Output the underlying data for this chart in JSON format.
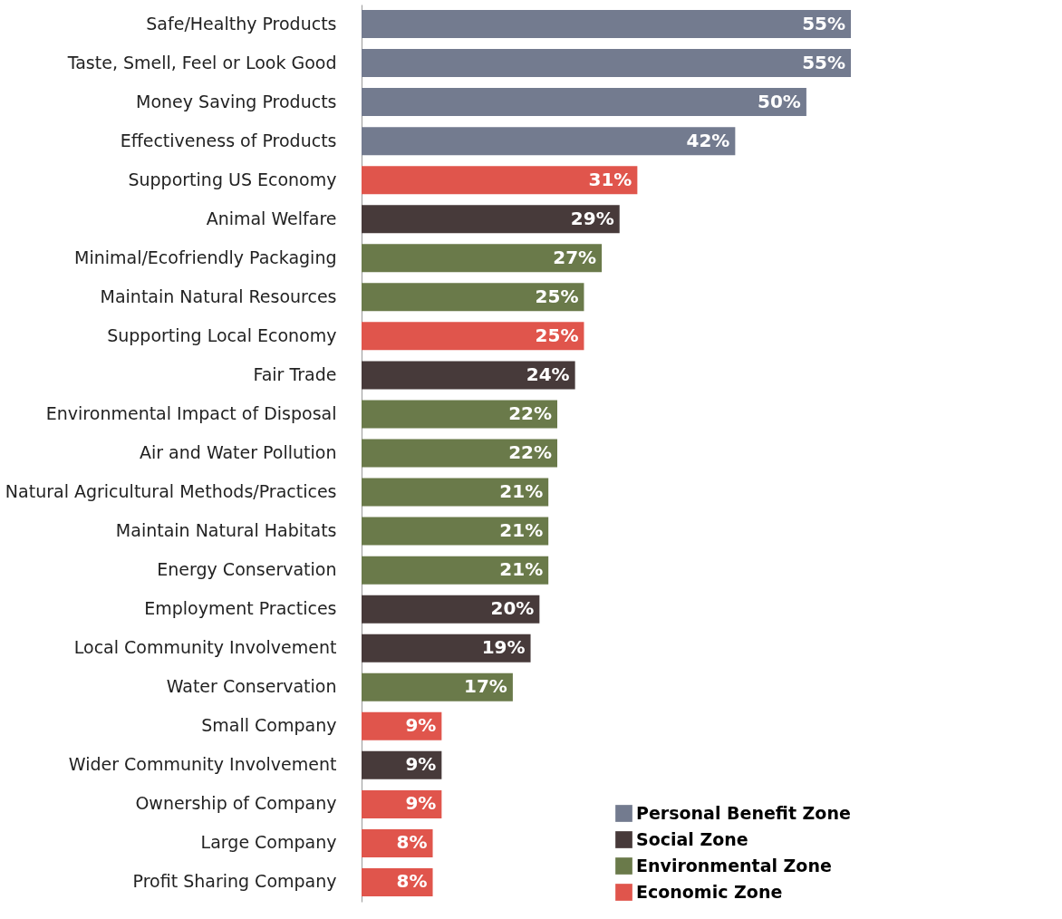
{
  "chart_data": {
    "type": "bar",
    "orientation": "horizontal",
    "categories": [
      "Safe/Healthy Products",
      "Taste, Smell, Feel or Look Good",
      "Money Saving Products",
      "Effectiveness of Products",
      "Supporting US Economy",
      "Animal Welfare",
      "Minimal/Ecofriendly Packaging",
      "Maintain Natural Resources",
      "Supporting Local Economy",
      "Fair Trade",
      "Environmental Impact of Disposal",
      "Air and Water Pollution",
      "Natural Agricultural Methods/Practices",
      "Maintain Natural Habitats",
      "Energy Conservation",
      "Employment Practices",
      "Local Community Involvement",
      "Water Conservation",
      "Small Company",
      "Wider Community Involvement",
      "Ownership of Company",
      "Large Company",
      "Profit Sharing Company"
    ],
    "series": [
      {
        "name": "Personal Benefit Zone",
        "color": "#737b8f",
        "values": [
          55,
          55,
          50,
          42,
          null,
          null,
          null,
          null,
          null,
          null,
          null,
          null,
          null,
          null,
          null,
          null,
          null,
          null,
          null,
          null,
          null,
          null,
          null
        ],
        "value_labels": [
          "55%",
          "55%",
          "50%",
          "42%",
          null,
          null,
          null,
          null,
          null,
          null,
          null,
          null,
          null,
          null,
          null,
          null,
          null,
          null,
          null,
          null,
          null,
          null,
          null
        ]
      },
      {
        "name": "Social Zone",
        "color": "#473a3a",
        "values": [
          null,
          null,
          null,
          null,
          null,
          29,
          null,
          null,
          null,
          24,
          null,
          null,
          null,
          null,
          null,
          20,
          19,
          null,
          null,
          9,
          null,
          null,
          null
        ],
        "value_labels": [
          null,
          null,
          null,
          null,
          null,
          "29%",
          null,
          null,
          null,
          "24%",
          null,
          null,
          null,
          null,
          null,
          "20%",
          "19%",
          null,
          null,
          "9%",
          null,
          null,
          null
        ]
      },
      {
        "name": "Environmental Zone",
        "color": "#6a7a4a",
        "values": [
          null,
          null,
          null,
          null,
          null,
          null,
          27,
          25,
          null,
          null,
          22,
          22,
          21,
          21,
          21,
          null,
          null,
          17,
          null,
          null,
          null,
          null,
          null
        ],
        "value_labels": [
          null,
          null,
          null,
          null,
          null,
          null,
          "27%",
          "25%",
          null,
          null,
          "22%",
          "22%",
          "21%",
          "21%",
          "21%",
          null,
          null,
          "17%",
          null,
          null,
          null,
          null,
          null
        ]
      },
      {
        "name": "Economic Zone",
        "color": "#e0554c",
        "values": [
          null,
          null,
          null,
          null,
          31,
          null,
          null,
          null,
          25,
          null,
          null,
          null,
          null,
          null,
          null,
          null,
          null,
          null,
          9,
          null,
          9,
          8,
          8
        ],
        "value_labels": [
          null,
          null,
          null,
          null,
          "31%",
          null,
          null,
          null,
          "25%",
          null,
          null,
          null,
          null,
          null,
          null,
          null,
          null,
          null,
          "9%",
          null,
          "9%",
          "8%",
          "8%"
        ]
      }
    ],
    "grid": false,
    "legend": "bottom right",
    "tick_labels": "y"
  }
}
